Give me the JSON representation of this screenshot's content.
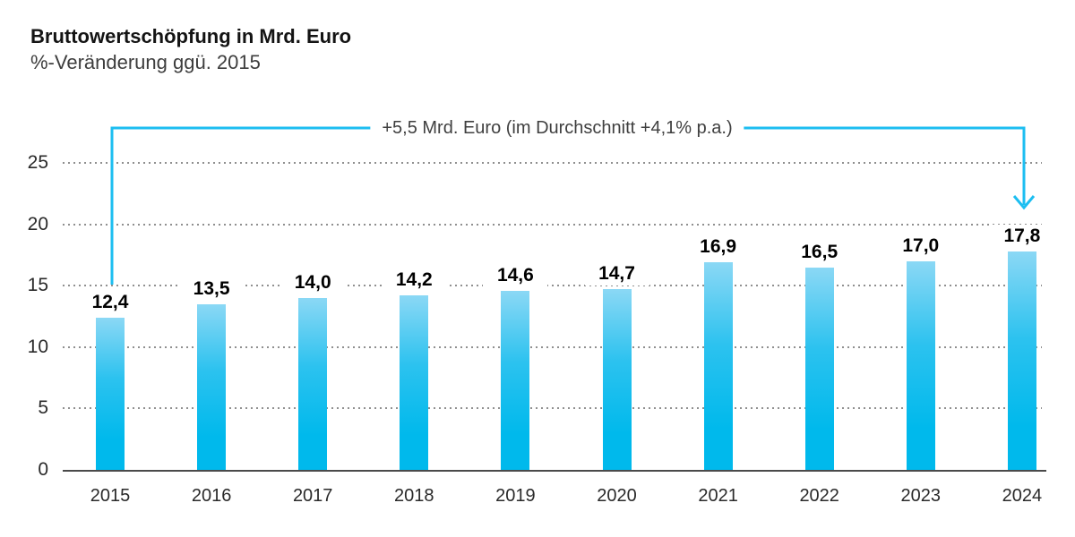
{
  "header": {
    "title": "Bruttowertschöpfung in Mrd. Euro",
    "subtitle": "%-Veränderung ggü. 2015"
  },
  "annotation": {
    "label": "+5,5 Mrd. Euro (im Durchschnitt +4,1% p.a.)"
  },
  "chart_data": {
    "type": "bar",
    "title": "Bruttowertschöpfung in Mrd. Euro",
    "subtitle": "%-Veränderung ggü. 2015",
    "categories": [
      "2015",
      "2016",
      "2017",
      "2018",
      "2019",
      "2020",
      "2021",
      "2022",
      "2023",
      "2024"
    ],
    "values": [
      12.4,
      13.5,
      14.0,
      14.2,
      14.6,
      14.7,
      16.9,
      16.5,
      17.0,
      17.8
    ],
    "value_labels": [
      "12,4",
      "13,5",
      "14,0",
      "14,2",
      "14,6",
      "14,7",
      "16,9",
      "16,5",
      "17,0",
      "17,8"
    ],
    "xlabel": "",
    "ylabel": "",
    "ylim": [
      0,
      27
    ],
    "yticks": [
      0,
      5,
      10,
      15,
      20,
      25
    ],
    "grid": "horizontal-dotted",
    "legend": "none",
    "annotation": "+5,5 Mrd. Euro (im Durchschnitt +4,1% p.a.)",
    "annotation_meaning": "increase from 12.4 (2015) to 17.8 (2024)",
    "bar_color_top": "#8bd8f5",
    "bar_color_mid": "#2cc2ef",
    "bar_color_bottom": "#00b9ec",
    "accent_color": "#1cbef1",
    "axis_line_color": "#4a4a4a",
    "gridline_color": "#8f8f8f"
  }
}
